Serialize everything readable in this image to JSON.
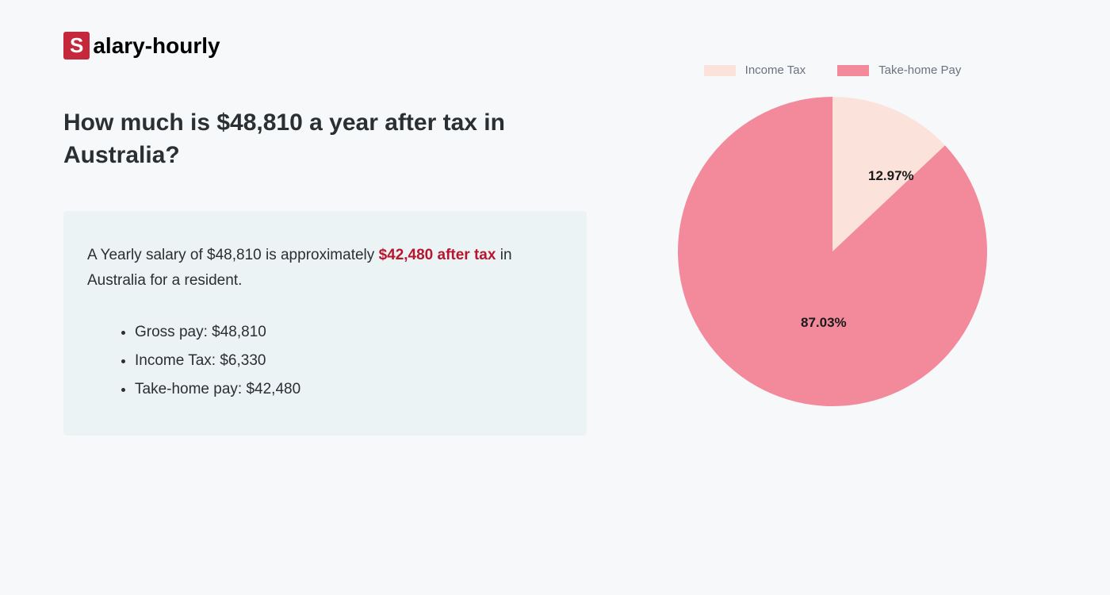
{
  "logo": {
    "first_letter": "S",
    "rest": "alary-hourly"
  },
  "heading": "How much is $48,810 a year after tax in Australia?",
  "summary": {
    "prefix": "A Yearly salary of $48,810 is approximately ",
    "highlight": "$42,480 after tax",
    "suffix": " in Australia for a resident."
  },
  "bullets": [
    "Gross pay: $48,810",
    "Income Tax: $6,330",
    "Take-home pay: $42,480"
  ],
  "chart": {
    "type": "pie",
    "legend": [
      {
        "label": "Income Tax",
        "color": "#fbe3db"
      },
      {
        "label": "Take-home Pay",
        "color": "#f38a9b"
      }
    ],
    "slices": [
      {
        "label": "12.97%",
        "value": 12.97,
        "color": "#fbe3db"
      },
      {
        "label": "87.03%",
        "value": 87.03,
        "color": "#f38a9b"
      }
    ],
    "background_color": "#f6f8f9",
    "radius": 195,
    "text_color": "#1a1a1a",
    "label_fontsize": 17,
    "legend_fontsize": 15,
    "legend_text_color": "#6b7280"
  },
  "info_box_bg": "#ecf3f4",
  "heading_color": "#2a2f33",
  "highlight_color": "#b7162f",
  "logo_bg_color": "#c4283a"
}
